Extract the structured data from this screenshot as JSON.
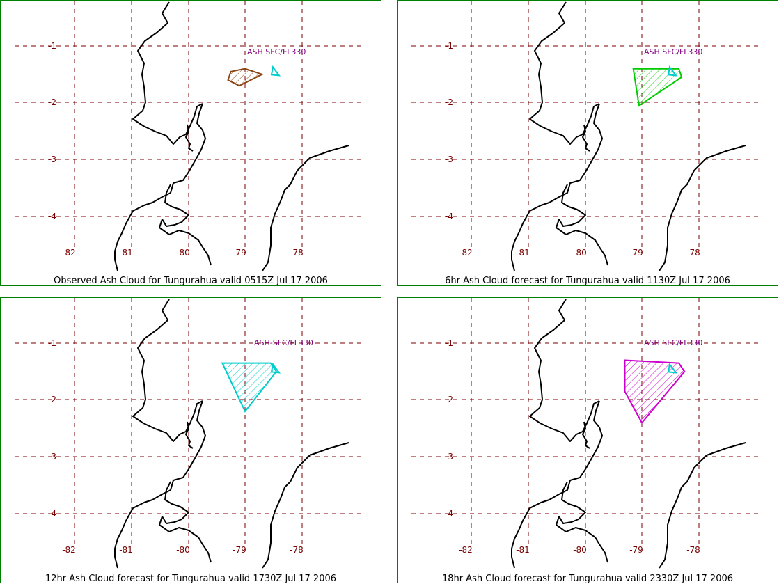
{
  "map": {
    "x_ticks": [
      "-82",
      "-81",
      "-80",
      "-79",
      "-78"
    ],
    "y_ticks": [
      "-1",
      "-2",
      "-3",
      "-4"
    ],
    "grid_color": "#7a0000",
    "coast_color": "#000000",
    "frame_color": "#008000"
  },
  "panels": [
    {
      "caption": "Observed Ash Cloud for Tungurahua valid 0515Z Jul 17 2006",
      "cloud_label": "ASH SFC/FL330",
      "cloud_color": "#8b4513",
      "label_color": "#800080",
      "cloud": [
        [
          -79.25,
          -1.45
        ],
        [
          -79.0,
          -1.4
        ],
        [
          -78.7,
          -1.5
        ],
        [
          -79.1,
          -1.7
        ],
        [
          -79.3,
          -1.6
        ]
      ]
    },
    {
      "caption": "6hr Ash Cloud forecast for Tungurahua valid 1130Z Jul 17 2006",
      "cloud_label": "ASH SFC/FL330",
      "cloud_color": "#00cc00",
      "label_color": "#800080",
      "cloud": [
        [
          -79.15,
          -1.4
        ],
        [
          -78.35,
          -1.4
        ],
        [
          -78.3,
          -1.55
        ],
        [
          -79.05,
          -2.05
        ]
      ]
    },
    {
      "caption": "12hr Ash Cloud forecast for Tungurahua valid 1730Z Jul 17 2006",
      "cloud_label": "ASH-SFC/FL330",
      "cloud_color": "#00cccc",
      "label_color": "#800080",
      "cloud": [
        [
          -79.4,
          -1.35
        ],
        [
          -78.55,
          -1.35
        ],
        [
          -78.45,
          -1.5
        ],
        [
          -79.0,
          -2.2
        ]
      ]
    },
    {
      "caption": "18hr Ash Cloud forecast for Tungurahua valid 2330Z Jul 17 2006",
      "cloud_label": "ASH SFC/FL330",
      "cloud_color": "#cc00cc",
      "label_color": "#800080",
      "cloud": [
        [
          -79.3,
          -1.3
        ],
        [
          -78.35,
          -1.35
        ],
        [
          -78.25,
          -1.5
        ],
        [
          -79.0,
          -2.4
        ],
        [
          -79.3,
          -1.85
        ]
      ]
    }
  ],
  "vent_marker_color": "#00cccc"
}
